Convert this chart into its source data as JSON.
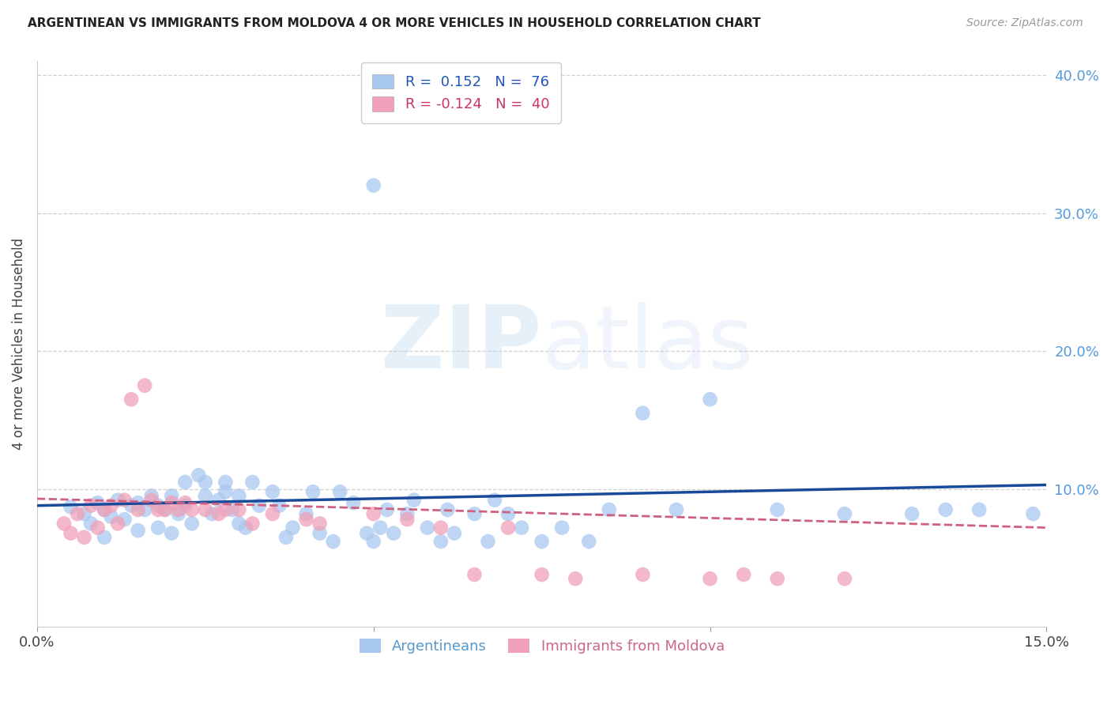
{
  "title": "ARGENTINEAN VS IMMIGRANTS FROM MOLDOVA 4 OR MORE VEHICLES IN HOUSEHOLD CORRELATION CHART",
  "source": "Source: ZipAtlas.com",
  "ylabel": "4 or more Vehicles in Household",
  "xlim": [
    0.0,
    0.15
  ],
  "ylim": [
    0.0,
    0.41
  ],
  "xtick_positions": [
    0.0,
    0.05,
    0.1,
    0.15
  ],
  "xticklabels": [
    "0.0%",
    "",
    "",
    "15.0%"
  ],
  "yticks_right": [
    0.1,
    0.2,
    0.3,
    0.4
  ],
  "ytick_right_labels": [
    "10.0%",
    "20.0%",
    "30.0%",
    "40.0%"
  ],
  "grid_color": "#d0d0d0",
  "blue_color": "#a8c8f0",
  "pink_color": "#f0a0b8",
  "blue_line_color": "#1a4a9a",
  "pink_line_color": "#d06080",
  "blue_line_y0": 0.088,
  "blue_line_y1": 0.103,
  "pink_line_y0": 0.093,
  "pink_line_y1": 0.072,
  "blue_scatter_x": [
    0.005,
    0.007,
    0.008,
    0.009,
    0.01,
    0.01,
    0.011,
    0.012,
    0.013,
    0.014,
    0.015,
    0.015,
    0.016,
    0.017,
    0.018,
    0.018,
    0.019,
    0.02,
    0.02,
    0.021,
    0.022,
    0.022,
    0.023,
    0.024,
    0.025,
    0.025,
    0.026,
    0.027,
    0.028,
    0.028,
    0.029,
    0.03,
    0.03,
    0.031,
    0.032,
    0.033,
    0.035,
    0.036,
    0.037,
    0.038,
    0.04,
    0.041,
    0.042,
    0.044,
    0.045,
    0.047,
    0.049,
    0.05,
    0.051,
    0.052,
    0.053,
    0.055,
    0.056,
    0.058,
    0.06,
    0.061,
    0.062,
    0.065,
    0.067,
    0.068,
    0.07,
    0.072,
    0.075,
    0.078,
    0.082,
    0.085,
    0.09,
    0.095,
    0.1,
    0.11,
    0.12,
    0.13,
    0.135,
    0.14,
    0.148,
    0.05
  ],
  "blue_scatter_y": [
    0.087,
    0.082,
    0.075,
    0.09,
    0.085,
    0.065,
    0.08,
    0.092,
    0.078,
    0.088,
    0.09,
    0.07,
    0.085,
    0.095,
    0.088,
    0.072,
    0.085,
    0.095,
    0.068,
    0.082,
    0.105,
    0.088,
    0.075,
    0.11,
    0.095,
    0.105,
    0.082,
    0.092,
    0.105,
    0.098,
    0.085,
    0.095,
    0.075,
    0.072,
    0.105,
    0.088,
    0.098,
    0.088,
    0.065,
    0.072,
    0.082,
    0.098,
    0.068,
    0.062,
    0.098,
    0.09,
    0.068,
    0.062,
    0.072,
    0.085,
    0.068,
    0.082,
    0.092,
    0.072,
    0.062,
    0.085,
    0.068,
    0.082,
    0.062,
    0.092,
    0.082,
    0.072,
    0.062,
    0.072,
    0.062,
    0.085,
    0.155,
    0.085,
    0.165,
    0.085,
    0.082,
    0.082,
    0.085,
    0.085,
    0.082,
    0.32
  ],
  "pink_scatter_x": [
    0.004,
    0.005,
    0.006,
    0.007,
    0.008,
    0.009,
    0.01,
    0.011,
    0.012,
    0.013,
    0.014,
    0.015,
    0.016,
    0.017,
    0.018,
    0.019,
    0.02,
    0.021,
    0.022,
    0.023,
    0.025,
    0.027,
    0.028,
    0.03,
    0.032,
    0.035,
    0.04,
    0.042,
    0.05,
    0.055,
    0.06,
    0.065,
    0.07,
    0.075,
    0.08,
    0.09,
    0.1,
    0.105,
    0.11,
    0.12
  ],
  "pink_scatter_y": [
    0.075,
    0.068,
    0.082,
    0.065,
    0.088,
    0.072,
    0.085,
    0.088,
    0.075,
    0.092,
    0.165,
    0.085,
    0.175,
    0.092,
    0.085,
    0.085,
    0.09,
    0.085,
    0.09,
    0.085,
    0.085,
    0.082,
    0.085,
    0.085,
    0.075,
    0.082,
    0.078,
    0.075,
    0.082,
    0.078,
    0.072,
    0.038,
    0.072,
    0.038,
    0.035,
    0.038,
    0.035,
    0.038,
    0.035,
    0.035
  ]
}
